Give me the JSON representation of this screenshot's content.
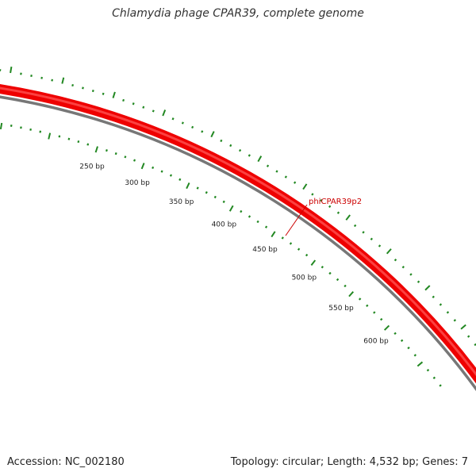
{
  "title": "Chlamydia phage CPAR39, complete genome",
  "footer": {
    "accession": "Accession: NC_002180",
    "topology": "Topology: circular; Length: 4,532 bp; Genes: 7"
  },
  "genome": {
    "length_bp": 4532,
    "topology": "circular",
    "gene_count": 7
  },
  "colors": {
    "gene": "#ee0000",
    "gene_highlight": "#ff5555",
    "backbone": "#777777",
    "ticks": "#228822",
    "label_line": "#cc0000"
  },
  "features": [
    {
      "name": "phiCPAR39p2",
      "strand": "+"
    }
  ],
  "tick_labels": [
    {
      "bp": 250,
      "text": "250 bp"
    },
    {
      "bp": 300,
      "text": "300 bp"
    },
    {
      "bp": 350,
      "text": "350 bp"
    },
    {
      "bp": 400,
      "text": "400 bp"
    },
    {
      "bp": 450,
      "text": "450 bp"
    },
    {
      "bp": 500,
      "text": "500 bp"
    },
    {
      "bp": 550,
      "text": "550 bp"
    },
    {
      "bp": 600,
      "text": "600 bp"
    }
  ]
}
